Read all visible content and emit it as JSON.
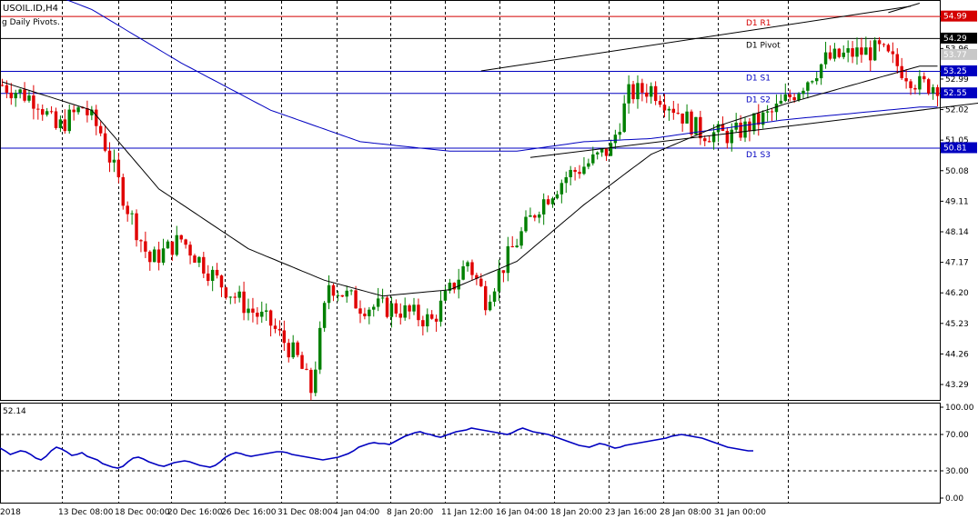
{
  "header": {
    "symbol": "USOIL.ID,H4",
    "indicator": "g Daily Pivots."
  },
  "oscillator": {
    "readout": "52.14"
  },
  "chart_data": [
    {
      "type": "candlestick",
      "ylim": [
        42.8,
        55.5
      ],
      "price_ticks": [
        "54.29",
        "53.96",
        "53.77",
        "53.25",
        "52.99",
        "52.55",
        "52.02",
        "51.05",
        "50.81",
        "50.08",
        "49.11",
        "48.14",
        "47.17",
        "46.20",
        "45.23",
        "44.26",
        "43.29"
      ],
      "price_ticks_numeric": [
        54.29,
        53.96,
        53.77,
        53.25,
        52.99,
        52.55,
        52.02,
        51.05,
        50.81,
        50.08,
        49.11,
        48.14,
        47.17,
        46.2,
        45.23,
        44.26,
        43.29
      ],
      "highlighted_prices": [
        {
          "label": "54.99",
          "value": 54.99,
          "color": "#d40000"
        },
        {
          "label": "54.29",
          "value": 54.29,
          "color": "#000000"
        },
        {
          "label": "53.25",
          "value": 53.25,
          "color": "#0000c0"
        },
        {
          "label": "52.55",
          "value": 52.55,
          "color": "#0000c0"
        },
        {
          "label": "50.81",
          "value": 50.81,
          "color": "#0000c0"
        }
      ],
      "current_price": {
        "label": "53.77",
        "value": 53.77
      },
      "pivot_levels": [
        {
          "label": "D1 R1",
          "value": 54.99,
          "color": "#d40000"
        },
        {
          "label": "D1 Pivot",
          "value": 54.29,
          "color": "#000000"
        },
        {
          "label": "D1 S1",
          "value": 53.25,
          "color": "#0000c0"
        },
        {
          "label": "D1 S2",
          "value": 52.55,
          "color": "#0000c0"
        },
        {
          "label": "D1 S3",
          "value": 50.81,
          "color": "#0000c0"
        }
      ],
      "x_labels": [
        "2018",
        "13 Dec 08:00",
        "18 Dec 00:00",
        "20 Dec 16:00",
        "26 Dec 16:00",
        "31 Dec 08:00",
        "4 Jan 04:00",
        "8 Jan 20:00",
        "11 Jan 12:00",
        "16 Jan 04:00",
        "18 Jan 20:00",
        "23 Jan 16:00",
        "28 Jan 08:00",
        "31 Jan 00:00"
      ],
      "colors": {
        "bull": "#008000",
        "bear": "#e00000",
        "ma_fast": "#000000",
        "ma_slow": "#0000c0",
        "grid": "#000000"
      },
      "candle_count": 210,
      "closes_anchor": [
        [
          0,
          52.8
        ],
        [
          8,
          52.3
        ],
        [
          12,
          51.4
        ],
        [
          18,
          52.1
        ],
        [
          22,
          51.3
        ],
        [
          28,
          48.9
        ],
        [
          33,
          47.2
        ],
        [
          40,
          47.9
        ],
        [
          48,
          46.6
        ],
        [
          55,
          45.7
        ],
        [
          60,
          45.2
        ],
        [
          66,
          44.1
        ],
        [
          69,
          43.1
        ],
        [
          73,
          46.5
        ],
        [
          80,
          45.8
        ],
        [
          88,
          45.7
        ],
        [
          96,
          45.3
        ],
        [
          104,
          47.2
        ],
        [
          108,
          46.0
        ],
        [
          114,
          47.6
        ],
        [
          120,
          49.0
        ],
        [
          126,
          49.9
        ],
        [
          132,
          50.4
        ],
        [
          136,
          50.8
        ],
        [
          140,
          52.5
        ],
        [
          145,
          52.7
        ],
        [
          150,
          52.1
        ],
        [
          156,
          51.3
        ],
        [
          163,
          51.2
        ],
        [
          172,
          51.9
        ],
        [
          178,
          52.7
        ],
        [
          184,
          53.6
        ],
        [
          190,
          53.8
        ],
        [
          196,
          53.9
        ],
        [
          201,
          53.3
        ],
        [
          205,
          52.8
        ]
      ],
      "ma_fast_anchor": [
        [
          0,
          52.9
        ],
        [
          20,
          52.0
        ],
        [
          35,
          49.5
        ],
        [
          55,
          47.6
        ],
        [
          72,
          46.6
        ],
        [
          85,
          46.1
        ],
        [
          100,
          46.3
        ],
        [
          115,
          47.2
        ],
        [
          130,
          49.0
        ],
        [
          145,
          50.6
        ],
        [
          160,
          51.5
        ],
        [
          175,
          52.2
        ],
        [
          185,
          52.6
        ],
        [
          195,
          53.0
        ],
        [
          205,
          53.4
        ]
      ],
      "ma_slow_anchor": [
        [
          0,
          56.3
        ],
        [
          20,
          55.2
        ],
        [
          40,
          53.5
        ],
        [
          60,
          52.0
        ],
        [
          80,
          51.0
        ],
        [
          100,
          50.7
        ],
        [
          115,
          50.7
        ],
        [
          130,
          51.0
        ],
        [
          145,
          51.1
        ],
        [
          160,
          51.4
        ],
        [
          175,
          51.7
        ],
        [
          190,
          51.9
        ],
        [
          205,
          52.1
        ]
      ],
      "trend_channel": {
        "upper": {
          "x1": 107,
          "y1": 53.25,
          "x2": 203,
          "y2": 55.3
        },
        "lower": {
          "x1": 118,
          "y1": 50.5,
          "x2": 237,
          "y2": 52.55
        },
        "upper2": {
          "x1": 198,
          "y1": 55.1,
          "x2": 205,
          "y2": 55.4
        }
      }
    },
    {
      "type": "line",
      "title": "",
      "ylim": [
        -5,
        105
      ],
      "y_ticks": [
        "100.00",
        "70.00",
        "30.00",
        "0.00"
      ],
      "y_ticks_numeric": [
        100,
        70,
        30,
        0
      ],
      "color": "#0000c0",
      "values": [
        55,
        52,
        48,
        50,
        52,
        51,
        48,
        44,
        42,
        46,
        52,
        56,
        54,
        51,
        47,
        48,
        50,
        46,
        44,
        42,
        38,
        36,
        34,
        33,
        35,
        40,
        44,
        45,
        43,
        40,
        38,
        36,
        35,
        37,
        39,
        40,
        41,
        40,
        38,
        36,
        35,
        34,
        36,
        40,
        45,
        48,
        50,
        49,
        47,
        46,
        47,
        48,
        49,
        50,
        51,
        51,
        50,
        48,
        47,
        46,
        45,
        44,
        43,
        42,
        43,
        44,
        45,
        47,
        49,
        52,
        56,
        58,
        60,
        61,
        60,
        60,
        59,
        62,
        65,
        68,
        70,
        72,
        73,
        71,
        70,
        68,
        67,
        69,
        71,
        73,
        74,
        75,
        77,
        76,
        75,
        74,
        73,
        72,
        71,
        70,
        72,
        75,
        77,
        75,
        73,
        72,
        71,
        70,
        68,
        66,
        64,
        62,
        60,
        58,
        57,
        56,
        58,
        60,
        59,
        57,
        55,
        56,
        58,
        59,
        60,
        61,
        62,
        63,
        64,
        65,
        66,
        68,
        69,
        70,
        69,
        68,
        67,
        66,
        64,
        62,
        60,
        58,
        56,
        55,
        54,
        53,
        52,
        52
      ]
    }
  ]
}
